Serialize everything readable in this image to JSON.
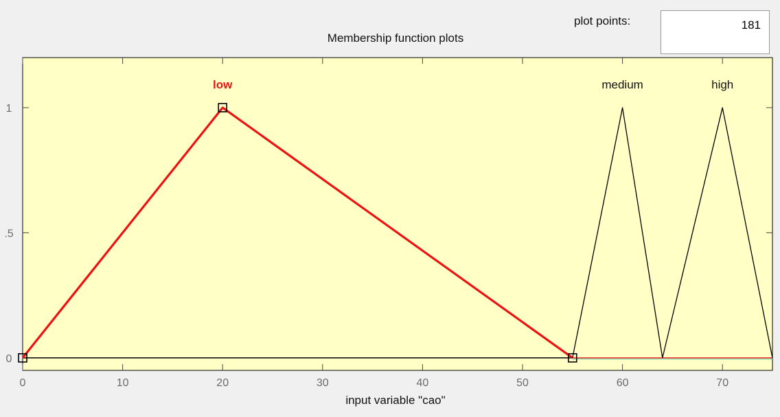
{
  "header": {
    "title": "Membership function plots",
    "plot_points_label": "plot points:",
    "plot_points_value": "181"
  },
  "plot": {
    "x_label": "input variable \"cao\"",
    "background_color": "#ffffc6",
    "selected_color": "#ee1111",
    "line_color": "#000000",
    "xlim": [
      0,
      75
    ],
    "ylim": [
      -0.05,
      1.2
    ],
    "x_ticks": [
      {
        "value": 0,
        "label": "0"
      },
      {
        "value": 10,
        "label": "10"
      },
      {
        "value": 20,
        "label": "20"
      },
      {
        "value": 30,
        "label": "30"
      },
      {
        "value": 40,
        "label": "40"
      },
      {
        "value": 50,
        "label": "50"
      },
      {
        "value": 60,
        "label": "60"
      },
      {
        "value": 70,
        "label": "70"
      }
    ],
    "y_ticks": [
      {
        "value": 0,
        "label": "0"
      },
      {
        "value": 0.5,
        "label": ".5"
      },
      {
        "value": 1,
        "label": "1"
      }
    ],
    "membership_functions": [
      {
        "name": "low",
        "points": [
          [
            0,
            0
          ],
          [
            20,
            1
          ],
          [
            55,
            0
          ]
        ],
        "selected": true
      },
      {
        "name": "medium",
        "points": [
          [
            55,
            0
          ],
          [
            60,
            1
          ],
          [
            64,
            0
          ]
        ],
        "selected": false
      },
      {
        "name": "high",
        "points": [
          [
            64,
            0
          ],
          [
            70,
            1
          ],
          [
            75,
            0
          ]
        ],
        "selected": false
      }
    ]
  }
}
